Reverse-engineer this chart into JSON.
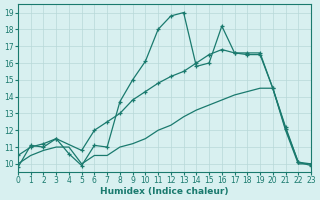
{
  "line1_x": [
    0,
    1,
    2,
    3,
    4,
    5,
    6,
    7,
    8,
    9,
    10,
    11,
    12,
    13,
    14,
    15,
    16,
    17,
    18,
    19,
    20,
    21,
    22,
    23
  ],
  "line1_y": [
    9.8,
    11.1,
    11.0,
    11.5,
    10.6,
    9.9,
    11.1,
    11.0,
    13.7,
    15.0,
    16.1,
    18.0,
    18.8,
    19.0,
    15.8,
    16.0,
    18.2,
    16.6,
    16.5,
    16.5,
    14.5,
    12.1,
    10.1,
    9.9
  ],
  "line2_x": [
    0,
    1,
    2,
    3,
    5,
    6,
    7,
    8,
    9,
    10,
    11,
    12,
    13,
    14,
    15,
    16,
    17,
    18,
    19,
    20,
    21,
    22,
    23
  ],
  "line2_y": [
    10.5,
    11.0,
    11.2,
    11.5,
    10.8,
    12.0,
    12.5,
    13.0,
    13.8,
    14.3,
    14.8,
    15.2,
    15.5,
    16.0,
    16.5,
    16.8,
    16.6,
    16.6,
    16.6,
    14.5,
    12.2,
    10.1,
    10.0
  ],
  "line3_x": [
    0,
    1,
    2,
    3,
    4,
    5,
    6,
    7,
    8,
    9,
    10,
    11,
    12,
    13,
    14,
    15,
    16,
    17,
    18,
    19,
    20,
    21,
    22,
    23
  ],
  "line3_y": [
    10.0,
    10.5,
    10.8,
    11.0,
    11.0,
    10.0,
    10.5,
    10.5,
    11.0,
    11.2,
    11.5,
    12.0,
    12.3,
    12.8,
    13.2,
    13.5,
    13.8,
    14.1,
    14.3,
    14.5,
    14.5,
    12.0,
    10.0,
    10.0
  ],
  "line_color": "#1a7a6e",
  "bg_color": "#d8f0f0",
  "grid_color": "#b8d8d8",
  "xlabel": "Humidex (Indice chaleur)",
  "xlim": [
    0,
    23
  ],
  "ylim": [
    9.5,
    19.5
  ],
  "yticks": [
    10,
    11,
    12,
    13,
    14,
    15,
    16,
    17,
    18,
    19
  ],
  "xticks": [
    0,
    1,
    2,
    3,
    4,
    5,
    6,
    7,
    8,
    9,
    10,
    11,
    12,
    13,
    14,
    15,
    16,
    17,
    18,
    19,
    20,
    21,
    22,
    23
  ]
}
